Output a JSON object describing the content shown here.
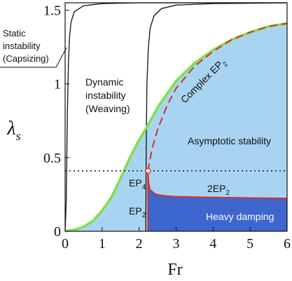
{
  "chart_data": {
    "type": "stability-diagram",
    "x_label": "Fr",
    "y_label": "λ",
    "y_label_sub": "s",
    "xlim": [
      0,
      6
    ],
    "ylim": [
      0,
      1.55
    ],
    "x_ticks": [
      "0",
      "1",
      "2",
      "3",
      "4",
      "5",
      "6"
    ],
    "y_ticks": [
      "0",
      "0.5",
      "1",
      "1.5"
    ],
    "y_tick_values": [
      0,
      0.5,
      1,
      1.5
    ],
    "regions": {
      "static_instability": [
        "Static",
        "instability",
        "(Capsizing)"
      ],
      "dynamic_instability": [
        "Dynamic",
        "instability",
        "(Weaving)"
      ],
      "asymptotic_stability": "Asymptotic stability",
      "heavy_damping": "Heavy damping"
    },
    "curve_labels": {
      "complex_ep2_main": "Complex EP",
      "complex_ep2_sub": "2",
      "two_ep2_main": "2EP",
      "two_ep2_sub": "2",
      "ep2_main": "EP",
      "ep2_sub": "2",
      "ep4_main": "EP",
      "ep4_sub": "4"
    },
    "ep4_point": {
      "x": 2.24,
      "y": 0.41
    },
    "dotted_line_y": 0.41,
    "green_boundary": [
      [
        0,
        0
      ],
      [
        0.25,
        0.01
      ],
      [
        0.5,
        0.03
      ],
      [
        0.75,
        0.07
      ],
      [
        1.0,
        0.14
      ],
      [
        1.25,
        0.23
      ],
      [
        1.5,
        0.36
      ],
      [
        1.75,
        0.5
      ],
      [
        2.0,
        0.62
      ],
      [
        2.24,
        0.72
      ],
      [
        2.5,
        0.84
      ],
      [
        3.0,
        1.02
      ],
      [
        3.5,
        1.14
      ],
      [
        4.0,
        1.23
      ],
      [
        4.5,
        1.3
      ],
      [
        5.0,
        1.35
      ],
      [
        5.5,
        1.39
      ],
      [
        6.0,
        1.41
      ]
    ],
    "complex_ep2_curve": [
      [
        2.24,
        0.41
      ],
      [
        2.35,
        0.56
      ],
      [
        2.5,
        0.69
      ],
      [
        2.75,
        0.85
      ],
      [
        3.0,
        0.97
      ],
      [
        3.5,
        1.12
      ],
      [
        4.0,
        1.22
      ],
      [
        4.5,
        1.3
      ],
      [
        5.0,
        1.35
      ],
      [
        5.5,
        1.39
      ],
      [
        6.0,
        1.41
      ]
    ],
    "two_ep2_curve": [
      [
        2.24,
        0.41
      ],
      [
        2.26,
        0.32
      ],
      [
        2.3,
        0.28
      ],
      [
        2.45,
        0.25
      ],
      [
        2.7,
        0.24
      ],
      [
        3.0,
        0.235
      ],
      [
        3.5,
        0.232
      ],
      [
        4.0,
        0.23
      ],
      [
        5.0,
        0.226
      ],
      [
        6.0,
        0.223
      ]
    ],
    "ep2_segment": [
      [
        2.24,
        0.0
      ],
      [
        2.24,
        0.41
      ]
    ],
    "static_boundary": [
      [
        0.0,
        0.0
      ],
      [
        0.03,
        0.2
      ],
      [
        0.06,
        0.8
      ],
      [
        0.09,
        1.15
      ],
      [
        0.12,
        1.32
      ],
      [
        0.16,
        1.42
      ],
      [
        0.25,
        1.49
      ],
      [
        0.5,
        1.53
      ],
      [
        1.0,
        1.545
      ],
      [
        2.0,
        1.55
      ],
      [
        3.0,
        1.55
      ],
      [
        6.0,
        1.55
      ]
    ],
    "weaving_boundary": [
      [
        2.18,
        0.0
      ],
      [
        2.19,
        0.5
      ],
      [
        2.21,
        1.0
      ],
      [
        2.25,
        1.25
      ],
      [
        2.3,
        1.38
      ],
      [
        2.4,
        1.46
      ],
      [
        2.6,
        1.51
      ],
      [
        3.0,
        1.535
      ],
      [
        4.0,
        1.545
      ],
      [
        6.0,
        1.55
      ]
    ],
    "colors": {
      "light_region": "#a8d4f1",
      "dark_region": "#3d66cf",
      "green": "#7ee04a",
      "red": "#d8312b",
      "black": "#111111"
    }
  }
}
